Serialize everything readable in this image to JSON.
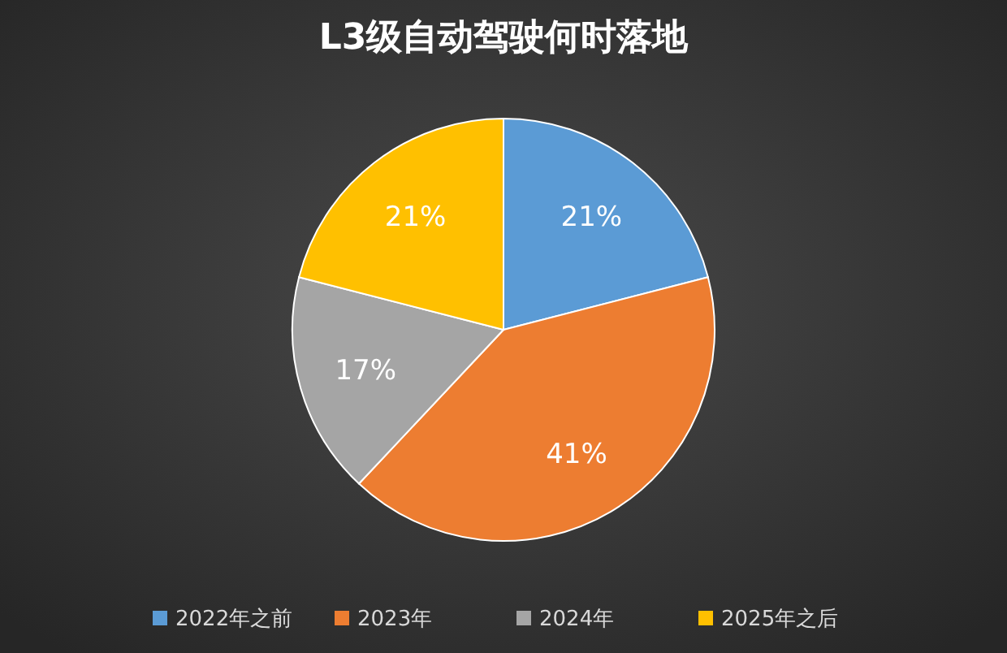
{
  "chart_data": {
    "type": "pie",
    "title": "L3级自动驾驶何时落地",
    "categories": [
      "2022年之前",
      "2023年",
      "2024年",
      "2025年之后"
    ],
    "values": [
      21,
      41,
      17,
      21
    ],
    "colors": [
      "#5b9bd5",
      "#ed7d31",
      "#a5a5a5",
      "#ffc000"
    ],
    "value_labels": [
      "21%",
      "41%",
      "17%",
      "21%"
    ],
    "legend": "bottom"
  }
}
